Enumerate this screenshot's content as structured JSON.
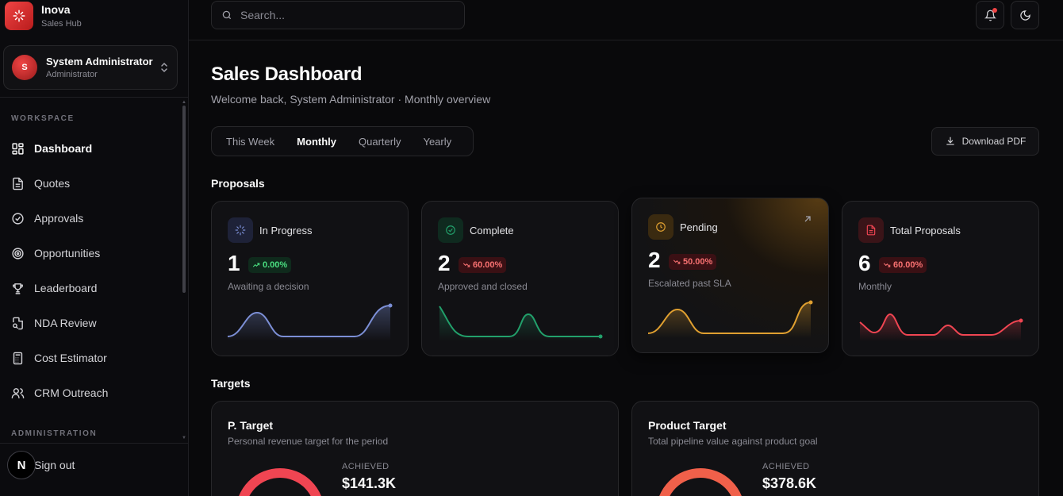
{
  "brand": {
    "name": "Inova",
    "subtitle": "Sales Hub"
  },
  "user": {
    "initial": "S",
    "name": "System Administrator",
    "role": "Administrator"
  },
  "sidebar": {
    "workspace_label": "WORKSPACE",
    "administration_label": "ADMINISTRATION",
    "items": [
      {
        "label": "Dashboard",
        "icon": "dashboard-icon",
        "active": true
      },
      {
        "label": "Quotes",
        "icon": "document-icon"
      },
      {
        "label": "Approvals",
        "icon": "check-circle-icon"
      },
      {
        "label": "Opportunities",
        "icon": "target-icon"
      },
      {
        "label": "Leaderboard",
        "icon": "trophy-icon"
      },
      {
        "label": "NDA Review",
        "icon": "file-search-icon"
      },
      {
        "label": "Cost Estimator",
        "icon": "calculator-icon"
      },
      {
        "label": "CRM Outreach",
        "icon": "users-icon"
      }
    ],
    "signout_label": "Sign out",
    "n_badge": "N"
  },
  "search": {
    "placeholder": "Search..."
  },
  "header": {
    "title": "Sales Dashboard",
    "subtitle": "Welcome back, System Administrator · Monthly overview"
  },
  "tabs": [
    {
      "label": "This Week"
    },
    {
      "label": "Monthly",
      "active": true
    },
    {
      "label": "Quarterly"
    },
    {
      "label": "Yearly"
    }
  ],
  "download_label": "Download PDF",
  "proposals": {
    "section_title": "Proposals",
    "cards": [
      {
        "label": "In Progress",
        "value": "1",
        "change": "0.00%",
        "trend": "up",
        "desc": "Awaiting a decision",
        "color": "#7c8fd6",
        "icon": "loader-icon"
      },
      {
        "label": "Complete",
        "value": "2",
        "change": "60.00%",
        "trend": "down",
        "desc": "Approved and closed",
        "color": "#22a06b",
        "icon": "check-circle-icon"
      },
      {
        "label": "Pending",
        "value": "2",
        "change": "50.00%",
        "trend": "down",
        "desc": "Escalated past SLA",
        "color": "#e0a030",
        "icon": "clock-icon"
      },
      {
        "label": "Total Proposals",
        "value": "6",
        "change": "60.00%",
        "trend": "down",
        "desc": "Monthly",
        "color": "#f04552",
        "icon": "file-text-icon"
      }
    ]
  },
  "targets": {
    "section_title": "Targets",
    "cards": [
      {
        "title": "P. Target",
        "subtitle": "Personal revenue target for the period",
        "achieved_label": "ACHIEVED",
        "achieved_value": "$141.3K",
        "color": "#f04552"
      },
      {
        "title": "Product Target",
        "subtitle": "Total pipeline value against product goal",
        "achieved_label": "ACHIEVED",
        "achieved_value": "$378.6K",
        "color": "#f0604a"
      }
    ]
  }
}
